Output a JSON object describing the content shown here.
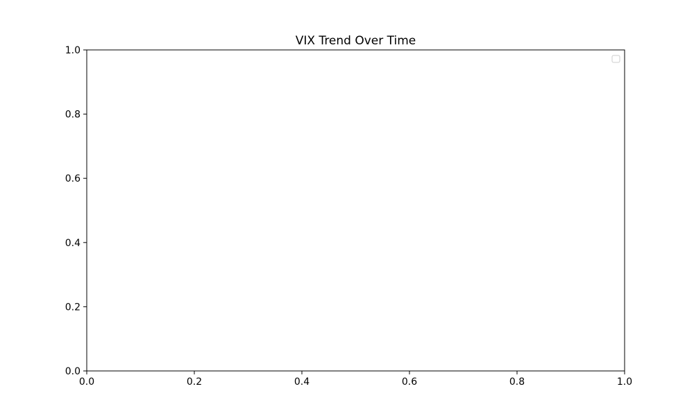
{
  "chart_data": {
    "type": "line",
    "title": "VIX Trend Over Time",
    "xlabel": "",
    "ylabel": "",
    "xlim": [
      0.0,
      1.0
    ],
    "ylim": [
      0.0,
      1.0
    ],
    "x_ticks": [
      0.0,
      0.2,
      0.4,
      0.6,
      0.8,
      1.0
    ],
    "y_ticks": [
      0.0,
      0.2,
      0.4,
      0.6,
      0.8,
      1.0
    ],
    "x_tick_labels": [
      "0.0",
      "0.2",
      "0.4",
      "0.6",
      "0.8",
      "1.0"
    ],
    "y_tick_labels": [
      "0.0",
      "0.2",
      "0.4",
      "0.6",
      "0.8",
      "1.0"
    ],
    "series": [],
    "grid": false,
    "legend": {
      "placement": "upper right",
      "entries": []
    }
  }
}
